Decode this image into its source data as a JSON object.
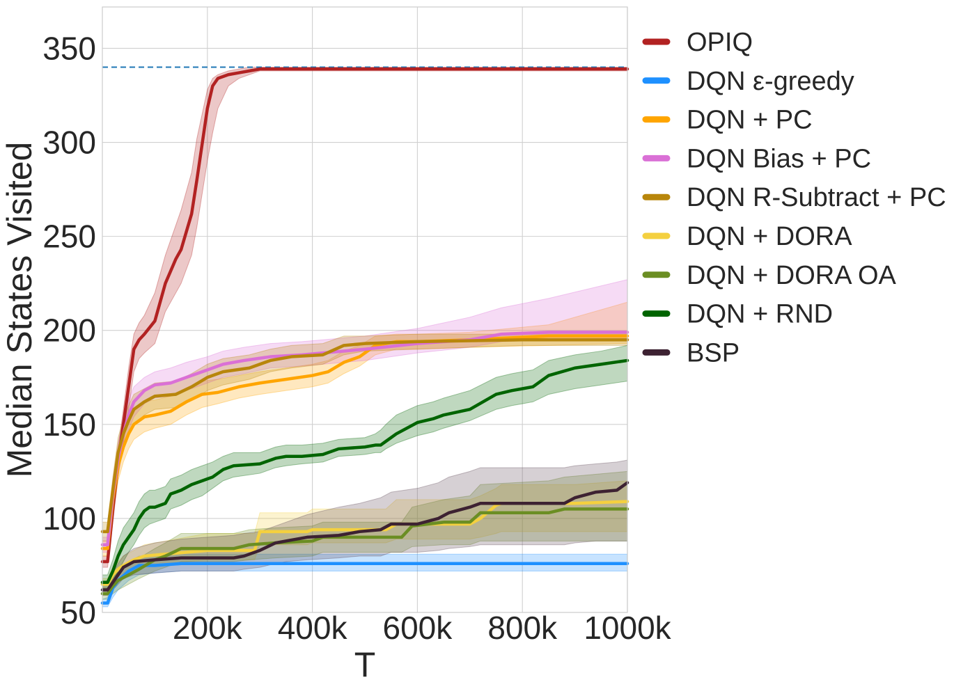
{
  "chart_data": {
    "type": "line",
    "title": "",
    "xlabel": "T",
    "ylabel": "Median States Visited",
    "xlim": [
      0,
      1000000
    ],
    "ylim": [
      50,
      372
    ],
    "xticks": [
      200000,
      400000,
      600000,
      800000,
      1000000
    ],
    "xtick_labels": [
      "200k",
      "400k",
      "600k",
      "800k",
      "1000k"
    ],
    "yticks": [
      50,
      100,
      150,
      200,
      250,
      300,
      350
    ],
    "ytick_labels": [
      "50",
      "100",
      "150",
      "200",
      "250",
      "300",
      "350"
    ],
    "grid": true,
    "legend_position": "outside-right",
    "reference_line": {
      "y": 340,
      "style": "dashed",
      "color": "#1f77b4"
    },
    "series": [
      {
        "name": "OPIQ",
        "color": "#b22222",
        "band_color": "#b22222",
        "x": [
          0,
          10000,
          20000,
          30000,
          40000,
          50000,
          60000,
          70000,
          80000,
          100000,
          120000,
          140000,
          150000,
          170000,
          180000,
          200000,
          210000,
          220000,
          240000,
          260000,
          280000,
          300000,
          350000,
          1000000
        ],
        "y": [
          77,
          77,
          105,
          130,
          150,
          170,
          190,
          195,
          198,
          205,
          225,
          238,
          243,
          262,
          280,
          318,
          330,
          334,
          336,
          337,
          338,
          339,
          339,
          339
        ],
        "lower": [
          74,
          74,
          98,
          122,
          140,
          158,
          178,
          185,
          188,
          193,
          210,
          220,
          225,
          240,
          255,
          290,
          305,
          318,
          330,
          334,
          336,
          338,
          338,
          338
        ],
        "upper": [
          80,
          80,
          112,
          138,
          158,
          180,
          198,
          204,
          208,
          220,
          240,
          256,
          264,
          284,
          302,
          328,
          334,
          336,
          338,
          339,
          340,
          340,
          340,
          340
        ]
      },
      {
        "name": "DQN ε-greedy",
        "color": "#1e90ff",
        "band_color": "#1e90ff",
        "x": [
          0,
          10000,
          20000,
          30000,
          50000,
          70000,
          100000,
          150000,
          1000000
        ],
        "y": [
          55,
          55,
          63,
          67,
          72,
          75,
          75,
          76,
          76
        ],
        "lower": [
          53,
          53,
          58,
          62,
          67,
          70,
          71,
          72,
          72
        ],
        "upper": [
          57,
          58,
          67,
          72,
          77,
          80,
          80,
          81,
          81
        ]
      },
      {
        "name": "DQN + PC",
        "color": "#ffa500",
        "band_color": "#ffa500",
        "x": [
          0,
          10000,
          20000,
          30000,
          40000,
          50000,
          60000,
          80000,
          100000,
          130000,
          160000,
          190000,
          220000,
          260000,
          300000,
          350000,
          400000,
          430000,
          460000,
          490000,
          520000,
          560000,
          600000,
          700000,
          850000,
          1000000
        ],
        "y": [
          84,
          84,
          110,
          128,
          138,
          145,
          150,
          154,
          155,
          157,
          162,
          166,
          167,
          170,
          172,
          174,
          176,
          178,
          183,
          186,
          192,
          194,
          194,
          195,
          197,
          197
        ],
        "lower": [
          80,
          80,
          102,
          120,
          130,
          137,
          142,
          146,
          148,
          150,
          155,
          159,
          161,
          164,
          166,
          168,
          170,
          172,
          177,
          181,
          187,
          190,
          190,
          191,
          192,
          193
        ],
        "upper": [
          88,
          88,
          118,
          136,
          146,
          153,
          158,
          162,
          163,
          165,
          169,
          173,
          174,
          176,
          178,
          180,
          182,
          184,
          189,
          192,
          197,
          198,
          198,
          199,
          203,
          215
        ]
      },
      {
        "name": "DQN Bias + PC",
        "color": "#da70d6",
        "band_color": "#da70d6",
        "x": [
          0,
          10000,
          20000,
          30000,
          40000,
          50000,
          60000,
          80000,
          100000,
          130000,
          160000,
          200000,
          230000,
          270000,
          320000,
          380000,
          420000,
          500000,
          600000,
          700000,
          760000,
          850000,
          1000000
        ],
        "y": [
          86,
          86,
          113,
          132,
          145,
          155,
          162,
          168,
          171,
          172,
          175,
          179,
          182,
          184,
          186,
          187,
          188,
          190,
          193,
          195,
          198,
          199,
          199
        ],
        "lower": [
          82,
          82,
          105,
          124,
          137,
          147,
          154,
          161,
          164,
          165,
          168,
          172,
          175,
          177,
          180,
          181,
          182,
          184,
          188,
          191,
          194,
          195,
          195
        ],
        "upper": [
          90,
          90,
          121,
          140,
          153,
          163,
          170,
          175,
          178,
          180,
          183,
          186,
          189,
          191,
          193,
          194,
          195,
          197,
          201,
          207,
          212,
          217,
          227
        ]
      },
      {
        "name": "DQN R-Subtract + PC",
        "color": "#b8860b",
        "band_color": "#b8860b",
        "x": [
          0,
          10000,
          20000,
          30000,
          40000,
          50000,
          60000,
          80000,
          100000,
          140000,
          170000,
          200000,
          230000,
          280000,
          320000,
          360000,
          420000,
          460000,
          500000,
          600000,
          800000,
          1000000
        ],
        "y": [
          93,
          93,
          115,
          135,
          145,
          152,
          158,
          162,
          165,
          166,
          170,
          175,
          178,
          180,
          184,
          186,
          187,
          192,
          193,
          194,
          195,
          195
        ],
        "lower": [
          88,
          88,
          108,
          127,
          137,
          144,
          150,
          155,
          158,
          159,
          163,
          168,
          171,
          174,
          178,
          180,
          182,
          187,
          189,
          190,
          192,
          192
        ],
        "upper": [
          98,
          98,
          122,
          143,
          153,
          160,
          166,
          169,
          172,
          173,
          177,
          182,
          185,
          187,
          190,
          192,
          193,
          197,
          197,
          198,
          198,
          198
        ]
      },
      {
        "name": "DQN + DORA",
        "color": "#f4d03f",
        "band_color": "#f4d03f",
        "x": [
          0,
          10000,
          20000,
          30000,
          40000,
          60000,
          80000,
          120000,
          160000,
          200000,
          290000,
          300000,
          390000,
          400000,
          540000,
          560000,
          700000,
          720000,
          750000,
          760000,
          900000,
          1000000
        ],
        "y": [
          65,
          65,
          70,
          73,
          75,
          78,
          80,
          81,
          82,
          83,
          83,
          93,
          93,
          94,
          94,
          97,
          97,
          100,
          107,
          108,
          108,
          109
        ],
        "lower": [
          62,
          62,
          66,
          69,
          71,
          73,
          75,
          76,
          77,
          78,
          78,
          86,
          86,
          87,
          87,
          89,
          89,
          90,
          92,
          93,
          93,
          93
        ],
        "upper": [
          68,
          68,
          74,
          77,
          80,
          83,
          86,
          88,
          90,
          92,
          92,
          103,
          103,
          105,
          105,
          110,
          110,
          112,
          116,
          118,
          118,
          120
        ]
      },
      {
        "name": "DQN + DORA OA",
        "color": "#6b8e23",
        "band_color": "#6b8e23",
        "x": [
          0,
          10000,
          20000,
          30000,
          50000,
          70000,
          100000,
          120000,
          150000,
          250000,
          280000,
          330000,
          400000,
          420000,
          570000,
          590000,
          650000,
          700000,
          720000,
          850000,
          880000,
          1000000
        ],
        "y": [
          60,
          60,
          64,
          67,
          70,
          73,
          78,
          80,
          84,
          84,
          86,
          87,
          88,
          90,
          90,
          96,
          98,
          98,
          103,
          103,
          105,
          105
        ],
        "lower": [
          57,
          57,
          60,
          62,
          65,
          68,
          72,
          74,
          77,
          77,
          78,
          79,
          80,
          82,
          82,
          85,
          86,
          86,
          88,
          88,
          88,
          88
        ],
        "upper": [
          63,
          63,
          68,
          72,
          76,
          79,
          84,
          87,
          92,
          92,
          94,
          95,
          96,
          98,
          98,
          106,
          110,
          112,
          118,
          120,
          122,
          125
        ]
      },
      {
        "name": "DQN + RND",
        "color": "#006400",
        "band_color": "#006400",
        "x": [
          0,
          10000,
          20000,
          30000,
          40000,
          50000,
          60000,
          70000,
          80000,
          90000,
          100000,
          120000,
          130000,
          140000,
          150000,
          170000,
          190000,
          200000,
          210000,
          230000,
          250000,
          300000,
          330000,
          350000,
          380000,
          420000,
          450000,
          500000,
          520000,
          530000,
          540000,
          560000,
          600000,
          630000,
          650000,
          700000,
          750000,
          780000,
          800000,
          820000,
          850000,
          900000,
          950000,
          1000000
        ],
        "y": [
          66,
          66,
          72,
          80,
          86,
          90,
          94,
          100,
          104,
          106,
          106,
          108,
          113,
          114,
          115,
          118,
          120,
          121,
          122,
          126,
          128,
          129,
          132,
          133,
          133,
          134,
          137,
          138,
          139,
          139,
          141,
          145,
          151,
          153,
          155,
          158,
          166,
          168,
          169,
          170,
          176,
          180,
          182,
          184
        ],
        "lower": [
          62,
          62,
          66,
          72,
          77,
          82,
          86,
          91,
          95,
          97,
          98,
          100,
          105,
          106,
          107,
          110,
          112,
          114,
          116,
          120,
          122,
          124,
          127,
          128,
          129,
          130,
          133,
          134,
          135,
          135,
          137,
          140,
          144,
          146,
          148,
          152,
          158,
          160,
          161,
          162,
          166,
          169,
          171,
          173
        ],
        "upper": [
          70,
          70,
          78,
          88,
          95,
          99,
          103,
          109,
          113,
          115,
          115,
          117,
          121,
          122,
          123,
          126,
          128,
          129,
          130,
          133,
          135,
          135,
          138,
          139,
          139,
          140,
          142,
          143,
          145,
          147,
          150,
          155,
          160,
          162,
          164,
          168,
          175,
          177,
          178,
          179,
          184,
          187,
          189,
          192
        ]
      },
      {
        "name": "BSP",
        "color": "#3d2232",
        "band_color": "#5c4453",
        "x": [
          0,
          10000,
          20000,
          30000,
          40000,
          60000,
          100000,
          150000,
          200000,
          250000,
          270000,
          300000,
          330000,
          350000,
          390000,
          450000,
          490000,
          530000,
          550000,
          600000,
          640000,
          660000,
          700000,
          720000,
          800000,
          880000,
          900000,
          940000,
          980000,
          1000000
        ],
        "y": [
          62,
          62,
          66,
          70,
          74,
          77,
          78,
          79,
          79,
          79,
          80,
          83,
          87,
          88,
          90,
          91,
          93,
          94,
          97,
          97,
          100,
          103,
          106,
          108,
          108,
          108,
          111,
          114,
          115,
          119
        ],
        "lower": [
          59,
          59,
          62,
          65,
          68,
          70,
          71,
          72,
          72,
          72,
          73,
          74,
          76,
          77,
          78,
          79,
          80,
          80,
          82,
          82,
          83,
          84,
          85,
          86,
          86,
          86,
          87,
          88,
          88,
          88
        ],
        "upper": [
          65,
          65,
          71,
          76,
          80,
          84,
          87,
          89,
          90,
          91,
          92,
          93,
          96,
          98,
          102,
          106,
          108,
          111,
          114,
          116,
          119,
          122,
          125,
          127,
          127,
          127,
          128,
          129,
          130,
          131
        ]
      }
    ]
  }
}
